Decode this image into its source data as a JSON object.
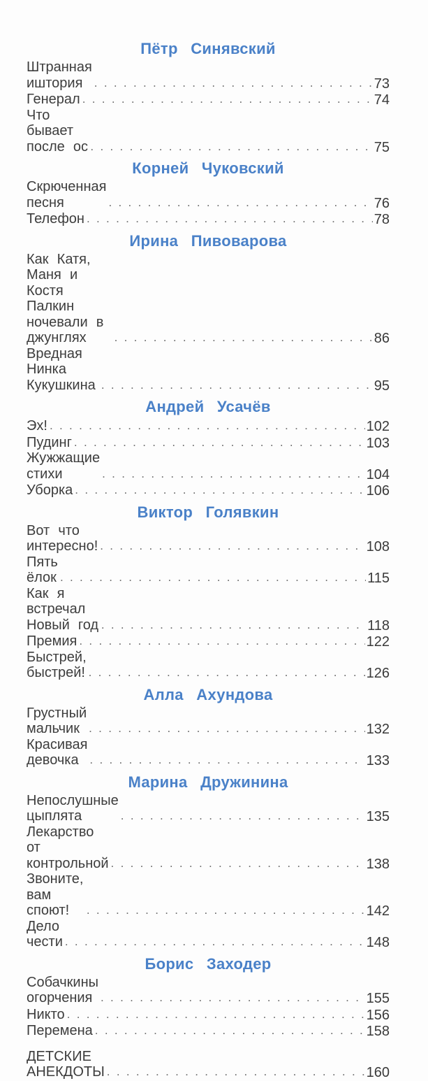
{
  "page": {
    "background": "#fdfdfd",
    "accent_color": "#4a81c8",
    "text_color": "#3d3d3d",
    "leader_dots_color": "#6b6b6b"
  },
  "toc": {
    "sections": [
      {
        "author": "Пётр Синявский",
        "entries": [
          {
            "title": "Штранная иштория",
            "page": "73"
          },
          {
            "title": "Генерал",
            "page": "74"
          },
          {
            "title": "Что бывает после ос",
            "page": "75"
          }
        ]
      },
      {
        "author": "Корней Чуковский",
        "entries": [
          {
            "title": "Скрюченная песня",
            "page": "76"
          },
          {
            "title": "Телефон",
            "page": "78"
          }
        ]
      },
      {
        "author": "Ирина Пивоварова",
        "entries": [
          {
            "title": "Как Катя, Маня и Костя Палкин\nночевали в джунглях",
            "page": "86"
          },
          {
            "title": "Вредная Нинка Кукушкина",
            "page": "95"
          }
        ]
      },
      {
        "author": "Андрей Усачёв",
        "entries": [
          {
            "title": "Эх!",
            "page": "102"
          },
          {
            "title": "Пудинг",
            "page": "103"
          },
          {
            "title": "Жужжащие стихи",
            "page": "104"
          },
          {
            "title": "Уборка",
            "page": "106"
          }
        ]
      },
      {
        "author": "Виктор Голявкин",
        "entries": [
          {
            "title": "Вот что интересно!",
            "page": "108"
          },
          {
            "title": "Пять ёлок",
            "page": "115"
          },
          {
            "title": "Как я встречал Новый год",
            "page": "118"
          },
          {
            "title": "Премия",
            "page": "122"
          },
          {
            "title": "Быстрей, быстрей!",
            "page": "126"
          }
        ]
      },
      {
        "author": "Алла Ахундова",
        "entries": [
          {
            "title": "Грустный мальчик",
            "page": "132"
          },
          {
            "title": "Красивая девочка",
            "page": "133"
          }
        ]
      },
      {
        "author": "Марина Дружинина",
        "entries": [
          {
            "title": "Непослушные цыплята",
            "page": "135"
          },
          {
            "title": "Лекарство от контрольной",
            "page": "138"
          },
          {
            "title": "Звоните, вам споют!",
            "page": "142"
          },
          {
            "title": "Дело чести",
            "page": "148"
          }
        ]
      },
      {
        "author": "Борис Заходер",
        "entries": [
          {
            "title": "Собачкины огорчения",
            "page": "155"
          },
          {
            "title": "Никто",
            "page": "156"
          },
          {
            "title": "Перемена",
            "page": "158"
          }
        ]
      }
    ],
    "standalone_entry": {
      "title": "ДЕТСКИЕ АНЕКДОТЫ",
      "page": "160"
    }
  }
}
